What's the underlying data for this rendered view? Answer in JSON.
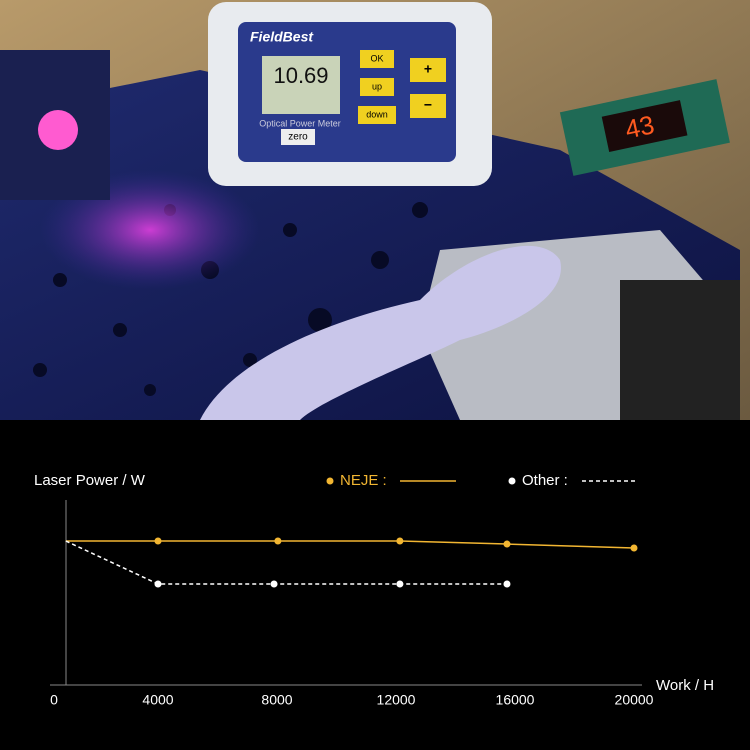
{
  "photo": {
    "meter_brand": "FieldBest",
    "meter_reading": "10.69",
    "meter_label": "Optical Power Meter",
    "buttons": [
      "OK",
      "up",
      "down",
      "+",
      "−",
      "zero"
    ],
    "counter_display": "43"
  },
  "chart_data": {
    "type": "line",
    "y_label": "Laser Power / W",
    "x_label": "Work / H",
    "xlim": [
      0,
      20000
    ],
    "ylim": [
      0,
      10
    ],
    "xticks": [
      0,
      4000,
      8000,
      12000,
      16000,
      20000
    ],
    "series": [
      {
        "name": "NEJE :",
        "color": "#f2b632",
        "dash": false,
        "x": [
          900,
          4000,
          8030,
          12130,
          15730,
          20000
        ],
        "values": [
          8.0,
          8.0,
          8.0,
          8.0,
          7.83,
          7.61
        ]
      },
      {
        "name": "Other :",
        "color": "#ffffff",
        "dash": true,
        "x": [
          900,
          4000,
          7900,
          12130,
          15730
        ],
        "values": [
          8.0,
          5.61,
          5.61,
          5.61,
          5.61
        ]
      }
    ]
  }
}
